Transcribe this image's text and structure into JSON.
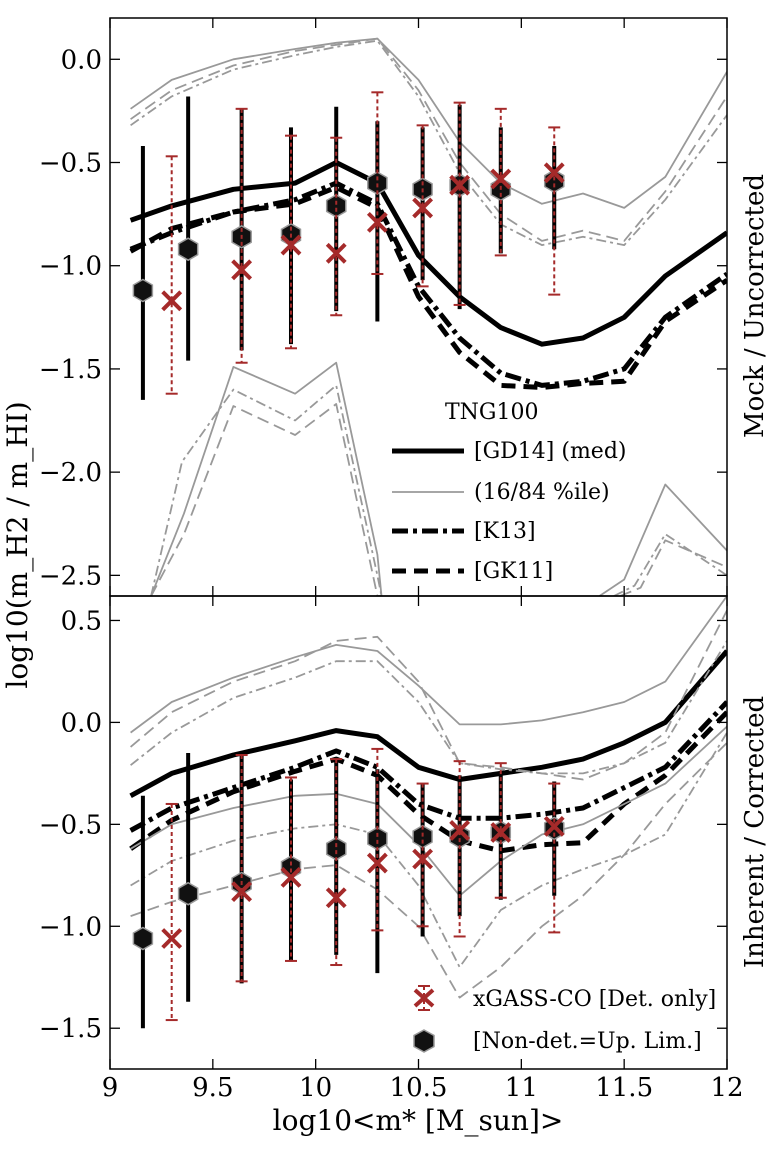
{
  "chart_data": [
    {
      "type": "line",
      "panel": "top",
      "side_label": "Mock / Uncorrected",
      "ylabel": "log10(m_H2 / m_HI)",
      "xlabel": "",
      "ylim": [
        -2.6,
        0.2
      ],
      "yticks": [
        0.0,
        -0.5,
        -1.0,
        -1.5,
        -2.0,
        -2.5
      ],
      "ytick_labels": [
        "0.0",
        "−0.5",
        "−1.0",
        "−1.5",
        "−2.0",
        "−2.5"
      ],
      "legend_title": "TNG100",
      "legend": [
        {
          "label": "[GD14] (med)",
          "style": "solid-thick"
        },
        {
          "label": "(16/84 %ile)",
          "style": "solid-thin"
        },
        {
          "label": "[K13]",
          "style": "dashdot-thick"
        },
        {
          "label": "[GK11]",
          "style": "dashed-thick"
        }
      ],
      "series": [
        {
          "name": "[GD14] (med)",
          "style": "solid-thick",
          "x": [
            9.1,
            9.3,
            9.6,
            9.9,
            10.1,
            10.3,
            10.5,
            10.7,
            10.9,
            11.1,
            11.3,
            11.5,
            11.7,
            12.0
          ],
          "y": [
            -0.78,
            -0.71,
            -0.63,
            -0.6,
            -0.5,
            -0.6,
            -0.95,
            -1.15,
            -1.3,
            -1.38,
            -1.35,
            -1.25,
            -1.05,
            -0.84
          ]
        },
        {
          "name": "",
          "style": "dashdot-thick",
          "x": [
            9.1,
            9.3,
            9.6,
            9.9,
            10.1,
            10.3,
            10.5,
            10.7,
            10.9,
            11.1,
            11.3,
            11.5,
            11.7,
            12.0
          ],
          "y": [
            -0.92,
            -0.84,
            -0.74,
            -0.68,
            -0.6,
            -0.7,
            -1.1,
            -1.35,
            -1.52,
            -1.58,
            -1.56,
            -1.5,
            -1.25,
            -1.04
          ]
        },
        {
          "name": "",
          "style": "dashed-thick",
          "x": [
            9.1,
            9.3,
            9.6,
            9.9,
            10.1,
            10.3,
            10.5,
            10.7,
            10.9,
            11.1,
            11.3,
            11.5,
            11.7,
            12.0
          ],
          "y": [
            -0.93,
            -0.82,
            -0.74,
            -0.7,
            -0.62,
            -0.72,
            -1.15,
            -1.42,
            -1.58,
            -1.59,
            -1.57,
            -1.56,
            -1.27,
            -1.07
          ]
        },
        {
          "name": "",
          "style": "solid-thin",
          "x": [
            9.1,
            9.3,
            9.6,
            9.9,
            10.1,
            10.3,
            10.5,
            10.7,
            10.9,
            11.1,
            11.3,
            11.5,
            11.7,
            12.0
          ],
          "y": [
            -0.24,
            -0.1,
            0.0,
            0.05,
            0.08,
            0.1,
            -0.1,
            -0.4,
            -0.6,
            -0.7,
            -0.65,
            -0.72,
            -0.57,
            -0.06
          ]
        },
        {
          "name": "",
          "style": "dashdot-thin",
          "x": [
            9.1,
            9.3,
            9.6,
            9.9,
            10.1,
            10.3,
            10.5,
            10.7,
            10.9,
            11.1,
            11.3,
            11.5,
            11.7,
            12.0
          ],
          "y": [
            -0.32,
            -0.18,
            -0.05,
            0.02,
            0.06,
            0.09,
            -0.18,
            -0.55,
            -0.8,
            -0.9,
            -0.86,
            -0.9,
            -0.68,
            -0.27
          ]
        },
        {
          "name": "",
          "style": "dashed-thin",
          "x": [
            9.1,
            9.3,
            9.6,
            9.9,
            10.1,
            10.3,
            10.5,
            10.7,
            10.9,
            11.1,
            11.3,
            11.5,
            11.7,
            12.0
          ],
          "y": [
            -0.29,
            -0.15,
            -0.03,
            0.04,
            0.07,
            0.1,
            -0.15,
            -0.5,
            -0.75,
            -0.88,
            -0.83,
            -0.88,
            -0.64,
            -0.18
          ]
        },
        {
          "name": "",
          "style": "solid-thin",
          "x": [
            9.2,
            9.36,
            9.6,
            9.9,
            10.1,
            10.3,
            10.32
          ],
          "y": [
            -2.6,
            -2.2,
            -1.49,
            -1.62,
            -1.47,
            -2.4,
            -2.6
          ]
        },
        {
          "name": "",
          "style": "dashdot-thin",
          "x": [
            9.2,
            9.35,
            9.6,
            9.9,
            10.1,
            10.3,
            10.32
          ],
          "y": [
            -2.6,
            -1.95,
            -1.6,
            -1.75,
            -1.58,
            -2.5,
            -2.6
          ]
        },
        {
          "name": "",
          "style": "dashed-thin",
          "x": [
            9.2,
            9.36,
            9.6,
            9.9,
            10.1,
            10.3,
            10.32
          ],
          "y": [
            -2.6,
            -2.3,
            -1.68,
            -1.82,
            -1.67,
            -2.6,
            -2.6
          ]
        },
        {
          "name": "",
          "style": "solid-thin",
          "x": [
            11.38,
            11.5,
            11.7,
            12.0
          ],
          "y": [
            -2.6,
            -2.52,
            -2.06,
            -2.38
          ]
        },
        {
          "name": "",
          "style": "dashdot-thin",
          "x": [
            11.45,
            11.55,
            11.7,
            12.0
          ],
          "y": [
            -2.6,
            -2.55,
            -2.3,
            -2.5
          ]
        },
        {
          "name": "",
          "style": "dashed-thin",
          "x": [
            11.48,
            11.58,
            11.7,
            12.0
          ],
          "y": [
            -2.6,
            -2.56,
            -2.33,
            -2.46
          ]
        }
      ],
      "xgass_det": [
        {
          "x": 9.3,
          "y": -1.17,
          "lo": -1.62,
          "hi": -0.47
        },
        {
          "x": 9.64,
          "y": -1.02,
          "lo": -1.47,
          "hi": -0.24
        },
        {
          "x": 9.88,
          "y": -0.9,
          "lo": -1.4,
          "hi": -0.37
        },
        {
          "x": 10.1,
          "y": -0.94,
          "lo": -1.24,
          "hi": -0.38
        },
        {
          "x": 10.3,
          "y": -0.79,
          "lo": -1.04,
          "hi": -0.16
        },
        {
          "x": 10.52,
          "y": -0.72,
          "lo": -1.1,
          "hi": -0.32
        },
        {
          "x": 10.7,
          "y": -0.61,
          "lo": -1.19,
          "hi": -0.21
        },
        {
          "x": 10.9,
          "y": -0.58,
          "lo": -0.95,
          "hi": -0.24
        },
        {
          "x": 11.16,
          "y": -0.55,
          "lo": -1.14,
          "hi": -0.33
        }
      ],
      "xgass_ul": [
        {
          "x": 9.16,
          "y": -1.12,
          "lo": -1.65,
          "hi": -0.42
        },
        {
          "x": 9.38,
          "y": -0.92,
          "lo": -1.46,
          "hi": -0.18
        },
        {
          "x": 9.64,
          "y": -0.86,
          "lo": -1.41,
          "hi": -0.24
        },
        {
          "x": 9.88,
          "y": -0.85,
          "lo": -1.38,
          "hi": -0.33
        },
        {
          "x": 10.1,
          "y": -0.71,
          "lo": -1.22,
          "hi": -0.23
        },
        {
          "x": 10.3,
          "y": -0.6,
          "lo": -1.27,
          "hi": -0.3
        },
        {
          "x": 10.52,
          "y": -0.63,
          "lo": -1.07,
          "hi": -0.33
        },
        {
          "x": 10.7,
          "y": -0.61,
          "lo": -1.21,
          "hi": -0.22
        },
        {
          "x": 10.9,
          "y": -0.63,
          "lo": -0.94,
          "hi": -0.33
        },
        {
          "x": 11.16,
          "y": -0.59,
          "lo": -0.92,
          "hi": -0.42
        }
      ]
    },
    {
      "type": "line",
      "panel": "bottom",
      "side_label": "Inherent / Corrected",
      "xlabel": "log10<m* [M_sun]>",
      "xlim": [
        9.0,
        12.0
      ],
      "xticks": [
        9.0,
        9.5,
        10.0,
        10.5,
        11.0,
        11.5,
        12.0
      ],
      "xtick_labels": [
        "9",
        "9.5",
        "10",
        "10.5",
        "11",
        "11.5",
        "12"
      ],
      "ylim": [
        -1.7,
        0.62
      ],
      "yticks": [
        0.5,
        0.0,
        -0.5,
        -1.0,
        -1.5
      ],
      "ytick_labels": [
        "0.5",
        "0.0",
        "−0.5",
        "−1.0",
        "−1.5"
      ],
      "legend": [
        {
          "label": "xGASS-CO [Det. only]",
          "marker": "x"
        },
        {
          "label": "[Non-det.=Up. Lim.]",
          "marker": "hexagon"
        }
      ],
      "series": [
        {
          "name": "",
          "style": "solid-thick",
          "x": [
            9.1,
            9.3,
            9.6,
            9.9,
            10.1,
            10.3,
            10.5,
            10.7,
            10.9,
            11.1,
            11.3,
            11.5,
            11.7,
            12.0
          ],
          "y": [
            -0.36,
            -0.25,
            -0.16,
            -0.09,
            -0.04,
            -0.07,
            -0.22,
            -0.28,
            -0.25,
            -0.22,
            -0.18,
            -0.1,
            0.0,
            0.35
          ]
        },
        {
          "name": "",
          "style": "dashdot-thick",
          "x": [
            9.1,
            9.3,
            9.6,
            9.9,
            10.1,
            10.3,
            10.5,
            10.7,
            10.9,
            11.1,
            11.3,
            11.5,
            11.7,
            12.0
          ],
          "y": [
            -0.53,
            -0.42,
            -0.32,
            -0.22,
            -0.14,
            -0.22,
            -0.4,
            -0.47,
            -0.47,
            -0.45,
            -0.42,
            -0.32,
            -0.22,
            0.1
          ]
        },
        {
          "name": "",
          "style": "dashed-thick",
          "x": [
            9.1,
            9.3,
            9.6,
            9.9,
            10.1,
            10.3,
            10.5,
            10.7,
            10.9,
            11.1,
            11.3,
            11.5,
            11.7,
            12.0
          ],
          "y": [
            -0.62,
            -0.48,
            -0.34,
            -0.24,
            -0.18,
            -0.26,
            -0.45,
            -0.58,
            -0.63,
            -0.6,
            -0.59,
            -0.4,
            -0.26,
            0.05
          ]
        },
        {
          "name": "",
          "style": "solid-thin",
          "x": [
            9.1,
            9.3,
            9.6,
            9.9,
            10.1,
            10.3,
            10.5,
            10.7,
            10.9,
            11.1,
            11.3,
            11.5,
            11.7,
            12.0
          ],
          "y": [
            -0.05,
            0.1,
            0.22,
            0.32,
            0.38,
            0.35,
            0.18,
            -0.01,
            -0.01,
            0.01,
            0.05,
            0.1,
            0.2,
            0.62
          ]
        },
        {
          "name": "",
          "style": "dashed-thin",
          "x": [
            9.1,
            9.3,
            9.6,
            9.9,
            10.1,
            10.3,
            10.5,
            10.7,
            10.9,
            11.1,
            11.3,
            11.5,
            11.7,
            12.0
          ],
          "y": [
            -0.12,
            0.05,
            0.2,
            0.3,
            0.4,
            0.42,
            0.2,
            -0.2,
            -0.22,
            -0.25,
            -0.28,
            -0.2,
            -0.05,
            0.55
          ]
        },
        {
          "name": "",
          "style": "dashdot-thin",
          "x": [
            9.1,
            9.3,
            9.6,
            9.9,
            10.1,
            10.3,
            10.5,
            10.7,
            10.9,
            11.1,
            11.3,
            11.5,
            11.7,
            12.0
          ],
          "y": [
            -0.21,
            -0.05,
            0.12,
            0.22,
            0.3,
            0.3,
            0.1,
            -0.2,
            -0.23,
            -0.25,
            -0.25,
            -0.2,
            -0.1,
            0.4
          ]
        },
        {
          "name": "",
          "style": "solid-thin",
          "x": [
            9.1,
            9.3,
            9.6,
            9.9,
            10.1,
            10.3,
            10.5,
            10.7,
            10.9,
            11.1,
            11.3,
            11.5,
            11.7,
            12.0
          ],
          "y": [
            -0.62,
            -0.5,
            -0.42,
            -0.36,
            -0.35,
            -0.4,
            -0.6,
            -0.85,
            -0.68,
            -0.55,
            -0.5,
            -0.4,
            -0.3,
            -0.02
          ]
        },
        {
          "name": "",
          "style": "dashdot-thin",
          "x": [
            9.1,
            9.3,
            9.6,
            9.9,
            10.1,
            10.3,
            10.5,
            10.7,
            10.9,
            11.1,
            11.3,
            11.5,
            11.7,
            12.0
          ],
          "y": [
            -0.8,
            -0.68,
            -0.58,
            -0.52,
            -0.5,
            -0.55,
            -0.8,
            -1.2,
            -0.92,
            -0.8,
            -0.72,
            -0.65,
            -0.55,
            -0.05
          ]
        },
        {
          "name": "",
          "style": "dashed-thin",
          "x": [
            9.1,
            9.3,
            9.6,
            9.9,
            10.1,
            10.3,
            10.5,
            10.7,
            10.9,
            11.1,
            11.3,
            11.5,
            11.7,
            12.0
          ],
          "y": [
            -0.95,
            -0.88,
            -0.8,
            -0.72,
            -0.7,
            -0.82,
            -1.0,
            -1.35,
            -1.2,
            -1.0,
            -0.85,
            -0.65,
            -0.4,
            -0.1
          ]
        }
      ],
      "xgass_det": [
        {
          "x": 9.3,
          "y": -1.06,
          "lo": -1.46,
          "hi": -0.4
        },
        {
          "x": 9.64,
          "y": -0.83,
          "lo": -1.27,
          "hi": -0.16
        },
        {
          "x": 9.88,
          "y": -0.76,
          "lo": -1.17,
          "hi": -0.27
        },
        {
          "x": 10.1,
          "y": -0.86,
          "lo": -1.19,
          "hi": -0.18
        },
        {
          "x": 10.3,
          "y": -0.69,
          "lo": -1.02,
          "hi": -0.13
        },
        {
          "x": 10.52,
          "y": -0.67,
          "lo": -1.0,
          "hi": -0.3
        },
        {
          "x": 10.7,
          "y": -0.53,
          "lo": -1.05,
          "hi": -0.19
        },
        {
          "x": 10.9,
          "y": -0.54,
          "lo": -0.86,
          "hi": -0.2
        },
        {
          "x": 11.16,
          "y": -0.51,
          "lo": -1.03,
          "hi": -0.3
        }
      ],
      "xgass_ul": [
        {
          "x": 9.16,
          "y": -1.06,
          "lo": -1.5,
          "hi": -0.36
        },
        {
          "x": 9.38,
          "y": -0.84,
          "lo": -1.37,
          "hi": -0.15
        },
        {
          "x": 9.64,
          "y": -0.79,
          "lo": -1.28,
          "hi": -0.16
        },
        {
          "x": 9.88,
          "y": -0.71,
          "lo": -1.17,
          "hi": -0.28
        },
        {
          "x": 10.1,
          "y": -0.62,
          "lo": -1.14,
          "hi": -0.17
        },
        {
          "x": 10.3,
          "y": -0.57,
          "lo": -1.23,
          "hi": -0.23
        },
        {
          "x": 10.52,
          "y": -0.56,
          "lo": -1.05,
          "hi": -0.3
        },
        {
          "x": 10.7,
          "y": -0.56,
          "lo": -0.95,
          "hi": -0.26
        },
        {
          "x": 10.9,
          "y": -0.54,
          "lo": -0.87,
          "hi": -0.24
        },
        {
          "x": 11.16,
          "y": -0.52,
          "lo": -0.85,
          "hi": -0.29
        }
      ]
    }
  ],
  "colors": {
    "median": "#000000",
    "percentile": "#999999",
    "xgass": "#a52a2a",
    "hexagon_fill": "#111111",
    "hexagon_edge": "#999999"
  }
}
